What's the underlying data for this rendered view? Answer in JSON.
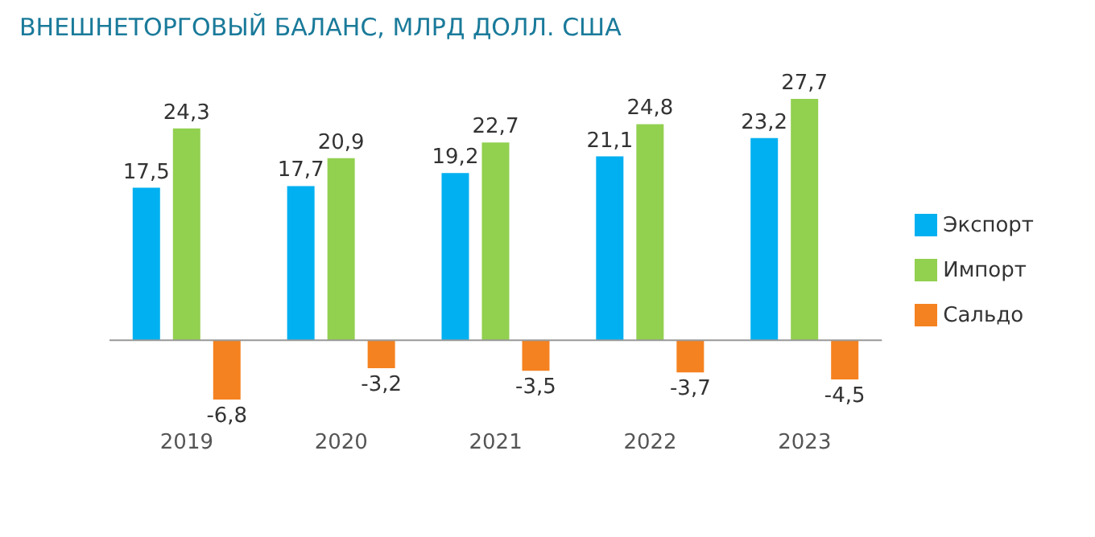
{
  "chart_data": {
    "type": "bar",
    "title": "ВНЕШНЕТОРГОВЫЙ БАЛАНС, МЛРД ДОЛЛ. США",
    "categories": [
      "2019",
      "2020",
      "2021",
      "2022",
      "2023"
    ],
    "series": [
      {
        "name": "Экспорт",
        "color": "#00b0f0",
        "values": [
          17.5,
          17.7,
          19.2,
          21.1,
          23.2
        ],
        "value_labels": [
          "17,5",
          "17,7",
          "19,2",
          "21,1",
          "23,2"
        ]
      },
      {
        "name": "Импорт",
        "color": "#92d050",
        "values": [
          24.3,
          20.9,
          22.7,
          24.8,
          27.7
        ],
        "value_labels": [
          "24,3",
          "20,9",
          "22,7",
          "24,8",
          "27,7"
        ]
      },
      {
        "name": "Сальдо",
        "color": "#f58220",
        "values": [
          -6.8,
          -3.2,
          -3.5,
          -3.7,
          -4.5
        ],
        "value_labels": [
          "-6,8",
          "-3,2",
          "-3,5",
          "-3,7",
          "-4,5"
        ]
      }
    ],
    "legend": "right"
  }
}
